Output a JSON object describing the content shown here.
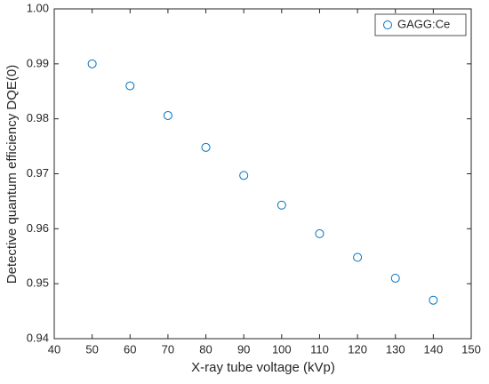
{
  "chart_data": {
    "type": "scatter",
    "x_label": "X-ray tube voltage (kVp)",
    "y_label": "Detective quantum efficiency DQE(0)",
    "series": [
      {
        "name": "GAGG:Ce",
        "color": "#0072bd",
        "x": [
          50,
          60,
          70,
          80,
          90,
          100,
          110,
          120,
          130,
          140
        ],
        "values": [
          0.99,
          0.986,
          0.9806,
          0.9748,
          0.9697,
          0.9643,
          0.9591,
          0.9548,
          0.951,
          0.947
        ]
      }
    ],
    "xlim": [
      40,
      150
    ],
    "xticks": [
      40,
      50,
      60,
      70,
      80,
      90,
      100,
      110,
      120,
      130,
      140,
      150
    ],
    "ylim": [
      0.94,
      1
    ],
    "yticks": [
      0.94,
      0.95,
      0.96,
      0.97,
      0.98,
      0.99,
      {
        "value": 1,
        "label": "1.00"
      }
    ],
    "legend": "top-right"
  }
}
